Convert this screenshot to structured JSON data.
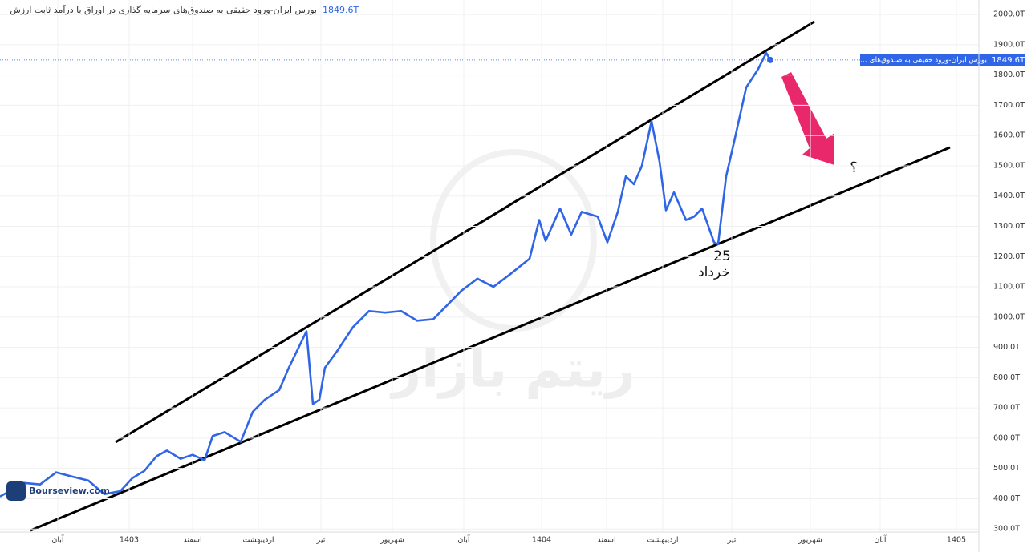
{
  "chart_data": {
    "type": "line",
    "title": "بورس ایران-ورود حقیقی به صندوق‌های سرمایه گذاری در اوراق با درآمد ثابت ارزش",
    "last_value_label": "1849.6T",
    "price_tag_label": "بورس ایران-ورود حقیقی به صندوق‌های ...",
    "annotations": [
      "25",
      "خرداد",
      "؟"
    ],
    "watermark": "ریتم بازار",
    "brand": "Bourseview.com",
    "xlim": [
      0,
      122
    ],
    "xticks": [
      {
        "value": 7.2,
        "label": "آبان"
      },
      {
        "value": 16.1,
        "label": "1403"
      },
      {
        "value": 24,
        "label": "اسفند"
      },
      {
        "value": 32.2,
        "label": "اردیبهشت"
      },
      {
        "value": 40,
        "label": "تیر"
      },
      {
        "value": 48.9,
        "label": "شهریور"
      },
      {
        "value": 57.8,
        "label": "آبان"
      },
      {
        "value": 67.5,
        "label": "1404"
      },
      {
        "value": 75.6,
        "label": "اسفند"
      },
      {
        "value": 82.6,
        "label": "اردیبهشت"
      },
      {
        "value": 91.2,
        "label": "تیر"
      },
      {
        "value": 101,
        "label": "شهریور"
      },
      {
        "value": 109.7,
        "label": "آبان"
      },
      {
        "value": 119.2,
        "label": "1405"
      }
    ],
    "ylim": [
      290,
      2030
    ],
    "yticks": [
      {
        "value": 300,
        "label": "300.0T"
      },
      {
        "value": 400,
        "label": "400.0T"
      },
      {
        "value": 500,
        "label": "500.0T"
      },
      {
        "value": 600,
        "label": "600.0T"
      },
      {
        "value": 700,
        "label": "700.0T"
      },
      {
        "value": 800,
        "label": "800.0T"
      },
      {
        "value": 900,
        "label": "900.0T"
      },
      {
        "value": 1000,
        "label": "1000.0T"
      },
      {
        "value": 1100,
        "label": "1100.0T"
      },
      {
        "value": 1200,
        "label": "1200.0T"
      },
      {
        "value": 1300,
        "label": "1300.0T"
      },
      {
        "value": 1400,
        "label": "1400.0T"
      },
      {
        "value": 1500,
        "label": "1500.0T"
      },
      {
        "value": 1600,
        "label": "1600.0T"
      },
      {
        "value": 1700,
        "label": "1700.0T"
      },
      {
        "value": 1800,
        "label": "1800.0T"
      },
      {
        "value": 1900,
        "label": "1900.0T"
      },
      {
        "value": 2000,
        "label": "2000.0T"
      }
    ],
    "grid": true,
    "series": [
      {
        "name": "بورس ایران-ورود حقیقی به صندوق‌های سرمایه گذاری در اوراق با درآمد ثابت ارزش",
        "color": "#2f65e6",
        "x": [
          0,
          3,
          5,
          7,
          9,
          11,
          13,
          15,
          16.5,
          18,
          19.5,
          20.8,
          22.5,
          24,
          25.5,
          26.5,
          28,
          30,
          31.5,
          33,
          34.8,
          36,
          38.2,
          39,
          39.8,
          40.5,
          42,
          44,
          46,
          48,
          50,
          52,
          54,
          55.5,
          57.5,
          59.5,
          61.5,
          63.5,
          66,
          67.2,
          68,
          69.8,
          71.2,
          72.5,
          74.5,
          75.7,
          77,
          78,
          79,
          80,
          81.2,
          82.2,
          83,
          84,
          85.5,
          86.5,
          87.5,
          89,
          89.5,
          90.5,
          91.5,
          93,
          94.5,
          95.5,
          96
        ],
        "values": [
          407,
          452,
          447,
          487,
          473,
          460,
          415,
          425,
          468,
          492,
          540,
          559,
          532,
          545,
          527,
          607,
          620,
          588,
          687,
          727,
          759,
          833,
          953,
          713,
          727,
          833,
          887,
          967,
          1020,
          1015,
          1020,
          988,
          993,
          1033,
          1087,
          1127,
          1100,
          1140,
          1193,
          1321,
          1252,
          1359,
          1273,
          1348,
          1332,
          1247,
          1348,
          1465,
          1439,
          1500,
          1647,
          1513,
          1353,
          1412,
          1321,
          1332,
          1359,
          1247,
          1241,
          1465,
          1580,
          1759,
          1820,
          1873,
          1849.6
        ]
      }
    ]
  }
}
